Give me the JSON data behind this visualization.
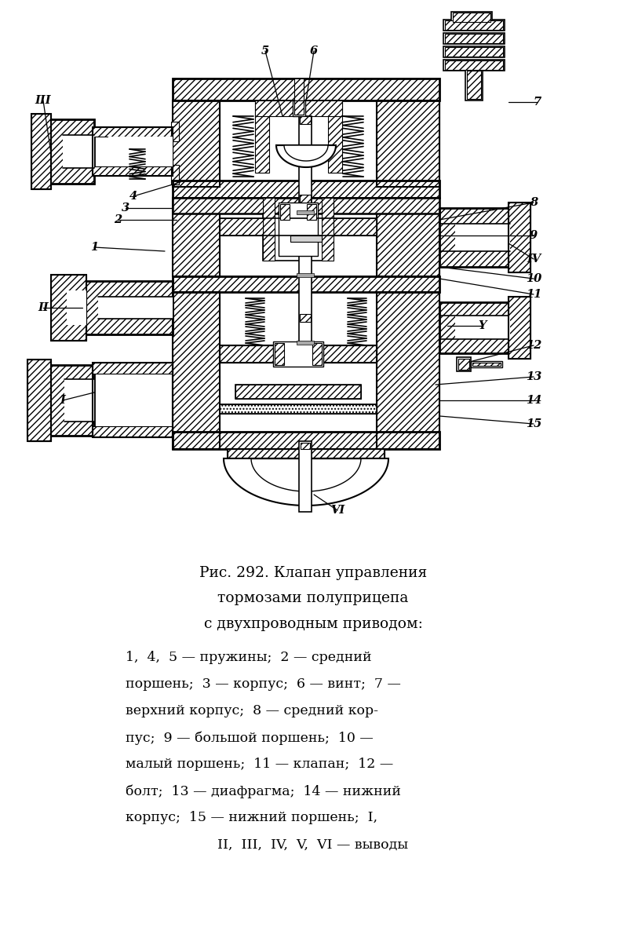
{
  "title_line1": "Рис. 292. Клапан управления",
  "title_line2": "тормозами полуприцепа",
  "title_line3": "с двухпроводным приводом:",
  "bg_color": "#ffffff",
  "text_color": "#000000",
  "figsize": [
    7.99,
    12.0
  ]
}
